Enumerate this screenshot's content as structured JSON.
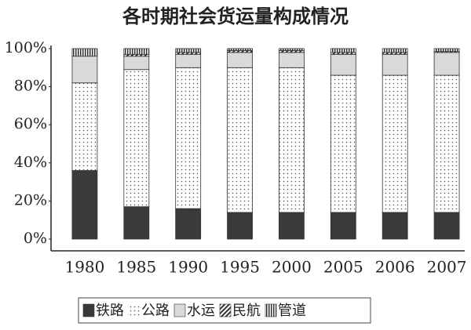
{
  "chart_data": {
    "type": "stacked_bar",
    "title": "各时期社会货运量构成情况",
    "categories": [
      "1980",
      "1985",
      "1990",
      "1995",
      "2000",
      "2005",
      "2006",
      "2007"
    ],
    "series": [
      {
        "name": "铁路",
        "color": "#3a3a3a",
        "pattern": "solid",
        "values": [
          36,
          17,
          16,
          14,
          14,
          14,
          14,
          14
        ]
      },
      {
        "name": "公路",
        "color": "#555555",
        "pattern": "dots",
        "values": [
          46,
          72,
          74,
          76,
          76,
          72,
          72,
          72
        ]
      },
      {
        "name": "水运",
        "color": "#d9d9d9",
        "pattern": "solid",
        "values": [
          14,
          7,
          7,
          8,
          8,
          11,
          11,
          12
        ]
      },
      {
        "name": "民航",
        "color": "#333333",
        "pattern": "diagonal",
        "values": [
          0,
          1,
          1,
          1,
          1,
          1,
          1,
          0.5
        ]
      },
      {
        "name": "管道",
        "color": "#333333",
        "pattern": "vertical",
        "values": [
          4,
          3,
          2,
          1,
          1,
          2,
          2,
          1.5
        ]
      }
    ],
    "ylim": [
      0,
      100
    ],
    "yticks": [
      {
        "value": 0,
        "label": "0%"
      },
      {
        "value": 20,
        "label": "20%"
      },
      {
        "value": 40,
        "label": "40%"
      },
      {
        "value": 60,
        "label": "60%"
      },
      {
        "value": 80,
        "label": "80%"
      },
      {
        "value": 100,
        "label": "100%"
      }
    ],
    "grid": false,
    "legend": "bottom"
  }
}
